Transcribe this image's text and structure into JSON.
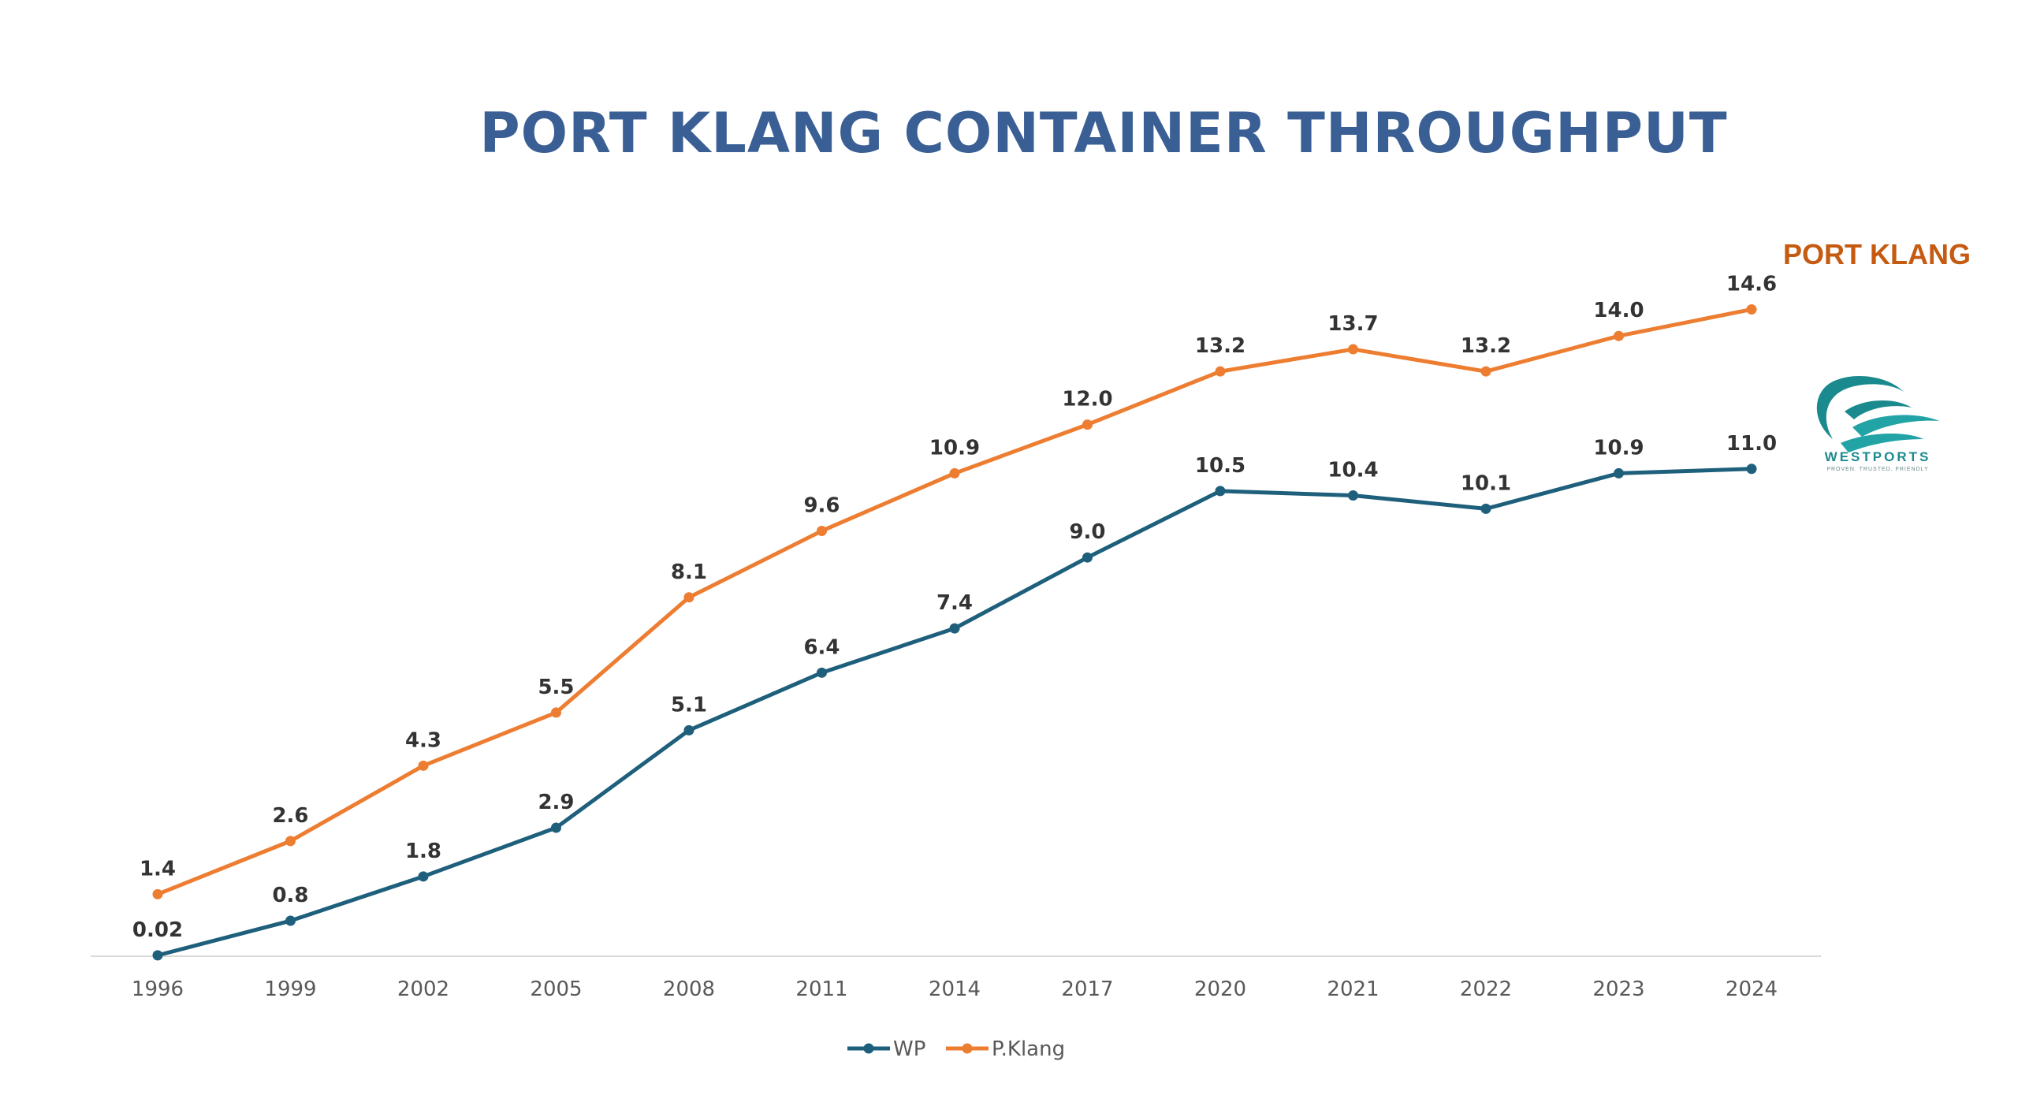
{
  "colors": {
    "title": "#3a5f95",
    "wp": "#1e5f7c",
    "pklang": "#ed7d31",
    "port_label": "#c55a11",
    "axis": "#d9d9d9",
    "logo": "#1b8a8e"
  },
  "chart_data": {
    "type": "line",
    "title": "PORT KLANG CONTAINER THROUGHPUT",
    "categories": [
      "1996",
      "1999",
      "2002",
      "2005",
      "2008",
      "2011",
      "2014",
      "2017",
      "2020",
      "2021",
      "2022",
      "2023",
      "2024"
    ],
    "series": [
      {
        "name": "WP",
        "values": [
          0.02,
          0.8,
          1.8,
          2.9,
          5.1,
          6.4,
          7.4,
          9.0,
          10.5,
          10.4,
          10.1,
          10.9,
          11.0
        ],
        "labels": [
          "0.02",
          "0.8",
          "1.8",
          "2.9",
          "5.1",
          "6.4",
          "7.4",
          "9.0",
          "10.5",
          "10.4",
          "10.1",
          "10.9",
          "11.0"
        ]
      },
      {
        "name": "P.Klang",
        "values": [
          1.4,
          2.6,
          4.3,
          5.5,
          8.1,
          9.6,
          10.9,
          12.0,
          13.2,
          13.7,
          13.2,
          14.0,
          14.6
        ],
        "labels": [
          "1.4",
          "2.6",
          "4.3",
          "5.5",
          "8.1",
          "9.6",
          "10.9",
          "12.0",
          "13.2",
          "13.7",
          "13.2",
          "14.0",
          "14.6"
        ]
      }
    ],
    "ylim": [
      0,
      14.6
    ],
    "legend": "bottom-center",
    "annotation": "PORT KLANG"
  },
  "logo": {
    "name": "WESTPORTS",
    "tagline": "PROVEN. TRUSTED. FRIENDLY"
  }
}
